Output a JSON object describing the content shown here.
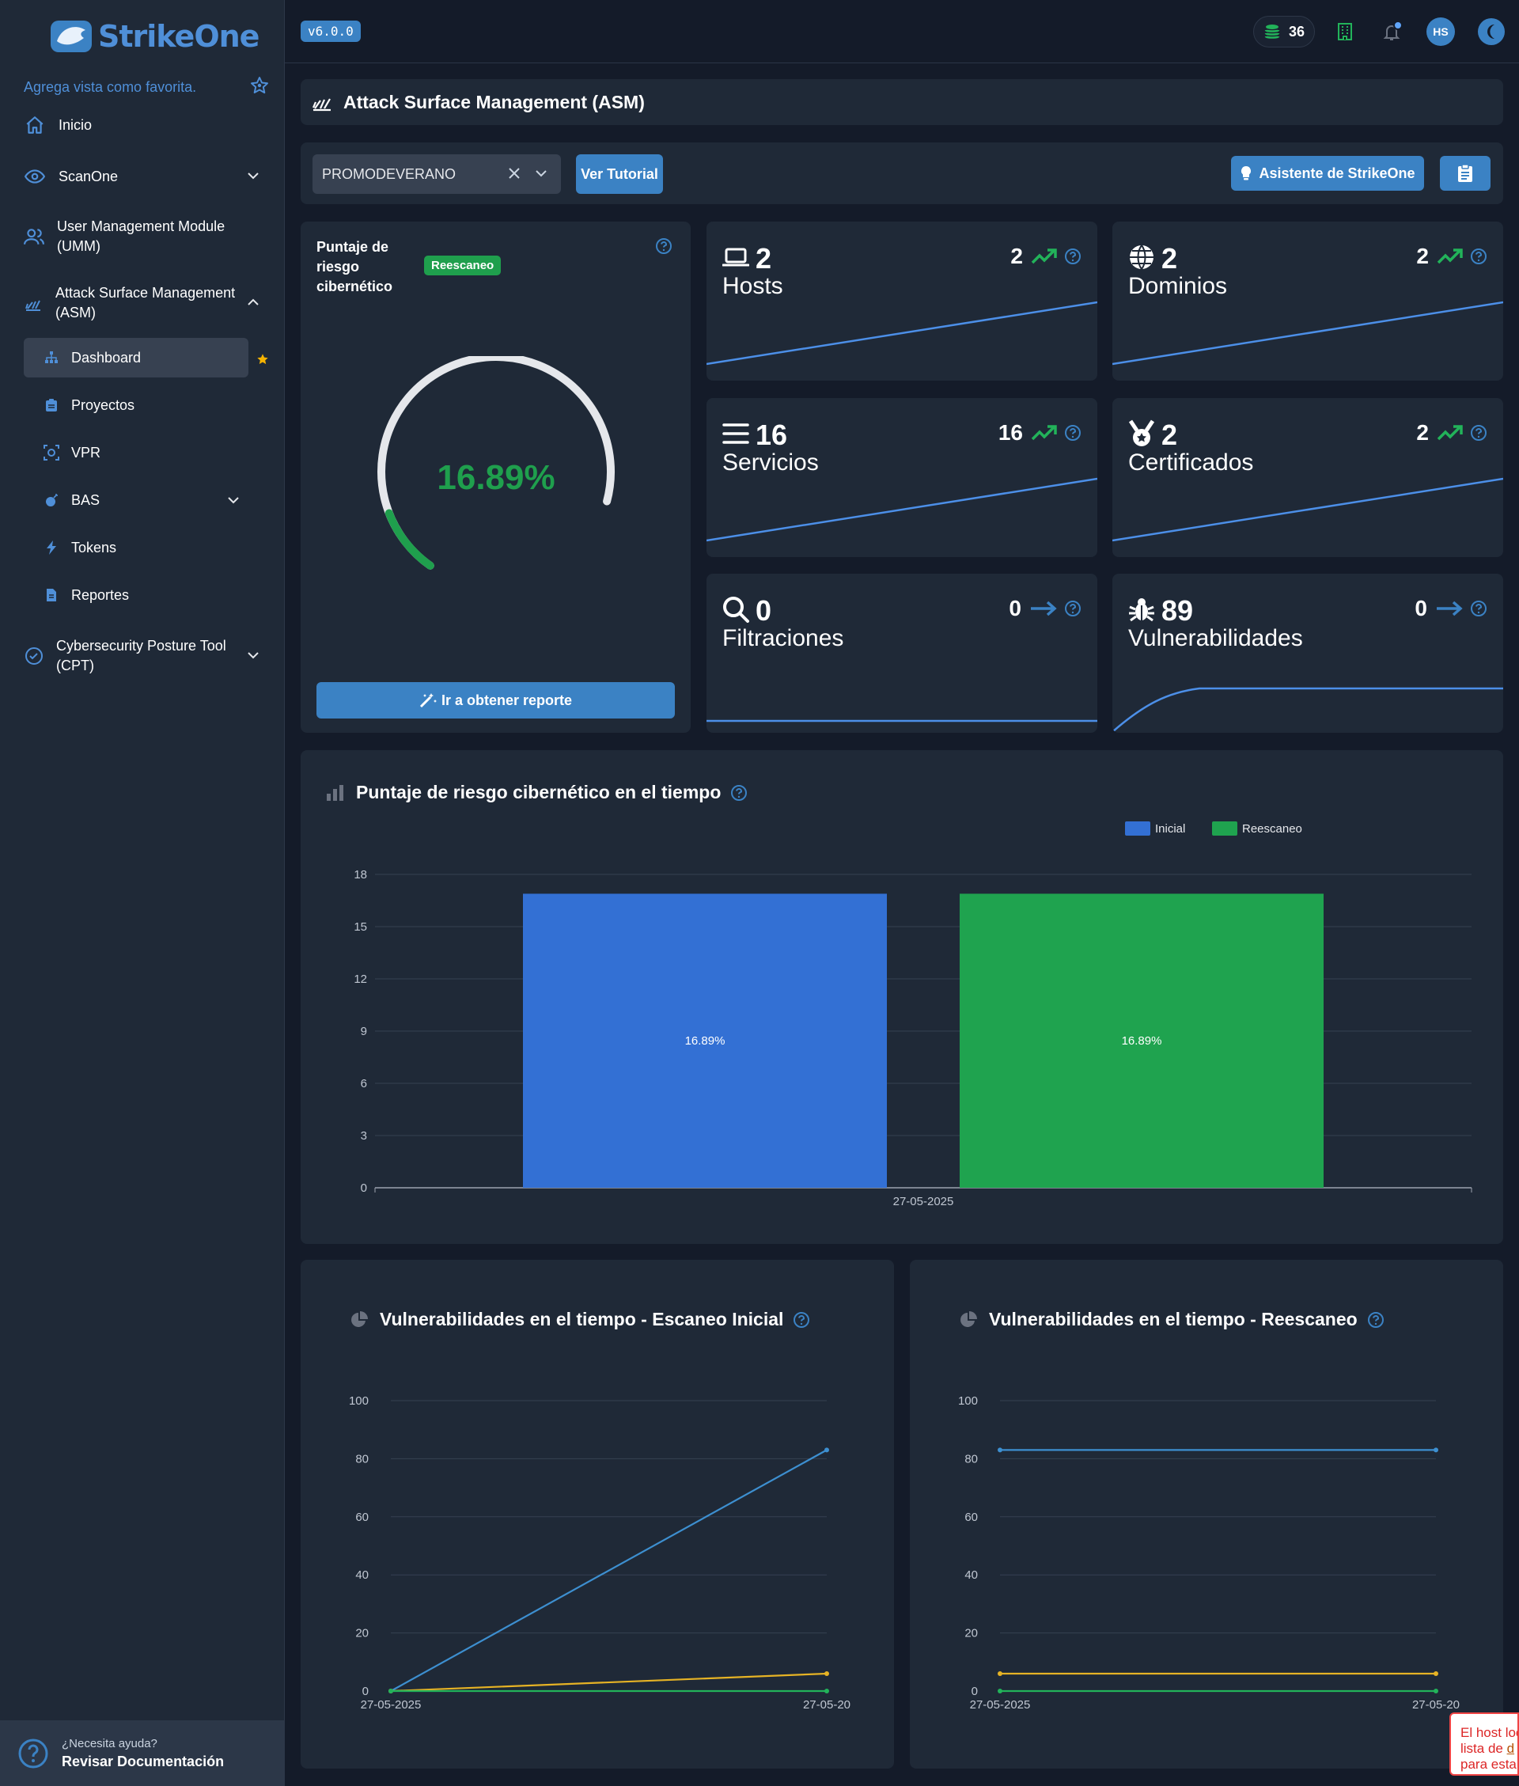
{
  "app": {
    "logo_text": "StrikeOne",
    "version": "v6.0.0",
    "credits": "36",
    "avatar_initials": "HS"
  },
  "sidebar": {
    "favorite_hint": "Agrega vista como favorita.",
    "items": [
      {
        "label": "Inicio",
        "icon": "home-icon"
      },
      {
        "label": "ScanOne",
        "icon": "eye-icon"
      },
      {
        "label": "User Management Module (UMM)",
        "icon": "users-icon"
      },
      {
        "label": "Attack Surface Management (ASM)",
        "icon": "radar-icon"
      },
      {
        "label": "Cybersecurity Posture Tool (CPT)",
        "icon": "check-circle-icon"
      }
    ],
    "sub_items": [
      {
        "label": "Dashboard",
        "icon": "sitemap-icon",
        "active": true
      },
      {
        "label": "Proyectos",
        "icon": "clipboard-icon"
      },
      {
        "label": "VPR",
        "icon": "target-icon"
      },
      {
        "label": "BAS",
        "icon": "bomb-icon"
      },
      {
        "label": "Tokens",
        "icon": "bolt-icon"
      },
      {
        "label": "Reportes",
        "icon": "document-icon"
      }
    ],
    "help_question": "¿Necesita ayuda?",
    "help_link": "Revisar Documentación"
  },
  "header": {
    "title": "Attack Surface Management (ASM)"
  },
  "filter": {
    "selected_project": "PROMODEVERANO",
    "tutorial_button": "Ver Tutorial",
    "assistant_button": "Asistente de StrikeOne"
  },
  "risk_card": {
    "title": "Puntaje de riesgo cibernético",
    "badge": "Reescaneo",
    "score": "16.89%",
    "score_fraction": 0.1689,
    "report_button": "Ir a obtener reporte",
    "accent": "#1f9f4d"
  },
  "stats": [
    {
      "key": "hosts",
      "count": "2",
      "label": "Hosts",
      "delta": "2",
      "trend": "up",
      "icon": "laptop-icon"
    },
    {
      "key": "dominios",
      "count": "2",
      "label": "Dominios",
      "delta": "2",
      "trend": "up",
      "icon": "globe-icon"
    },
    {
      "key": "servicios",
      "count": "16",
      "label": "Servicios",
      "delta": "16",
      "trend": "up",
      "icon": "list-icon"
    },
    {
      "key": "certificados",
      "count": "2",
      "label": "Certificados",
      "delta": "2",
      "trend": "up",
      "icon": "award-icon"
    },
    {
      "key": "filtraciones",
      "count": "0",
      "label": "Filtraciones",
      "delta": "0",
      "trend": "flat",
      "icon": "search-icon"
    },
    {
      "key": "vulnerabilidades",
      "count": "89",
      "label": "Vulnerabilidades",
      "delta": "0",
      "trend": "flat",
      "icon": "bug-icon"
    }
  ],
  "risk_chart": {
    "title": "Puntaje de riesgo cibernético en el tiempo"
  },
  "vuln_initial": {
    "title": "Vulnerabilidades en el tiempo - Escaneo Inicial"
  },
  "vuln_rescan": {
    "title": "Vulnerabilidades en el tiempo - Reescaneo"
  },
  "toast": {
    "line1": "El host loc",
    "line2": "lista de ",
    "link": "d",
    "line3": "para esta"
  },
  "chart_data": [
    {
      "type": "bar",
      "categories": [
        "27-05-2025"
      ],
      "series": [
        {
          "name": "Inicial",
          "values": [
            16.89
          ],
          "color": "#3370d4",
          "data_label": "16.89%"
        },
        {
          "name": "Reescaneo",
          "values": [
            16.89
          ],
          "color": "#1fa34f",
          "data_label": "16.89%"
        }
      ],
      "ylim": [
        0,
        18
      ],
      "yticks": [
        "0",
        "3",
        "6",
        "9",
        "12",
        "15",
        "18"
      ],
      "legend": "top-center",
      "grid": true
    },
    {
      "type": "line",
      "x": [
        "27-05-2025",
        "27-05-20"
      ],
      "series": [
        {
          "values": [
            0,
            83
          ],
          "color": "#3d8fd0"
        },
        {
          "values": [
            0,
            6
          ],
          "color": "#e6b325"
        },
        {
          "values": [
            0,
            0
          ],
          "color": "#22b35a"
        }
      ],
      "ylim": [
        0,
        100
      ],
      "yticks": [
        "0",
        "20",
        "40",
        "60",
        "80",
        "100"
      ],
      "grid": true
    },
    {
      "type": "line",
      "x": [
        "27-05-2025",
        "27-05-20"
      ],
      "series": [
        {
          "values": [
            83,
            83
          ],
          "color": "#3d8fd0"
        },
        {
          "values": [
            6,
            6
          ],
          "color": "#e6b325"
        },
        {
          "values": [
            0,
            0
          ],
          "color": "#22b35a"
        }
      ],
      "ylim": [
        0,
        100
      ],
      "yticks": [
        "0",
        "20",
        "40",
        "60",
        "80",
        "100"
      ],
      "grid": true
    }
  ]
}
